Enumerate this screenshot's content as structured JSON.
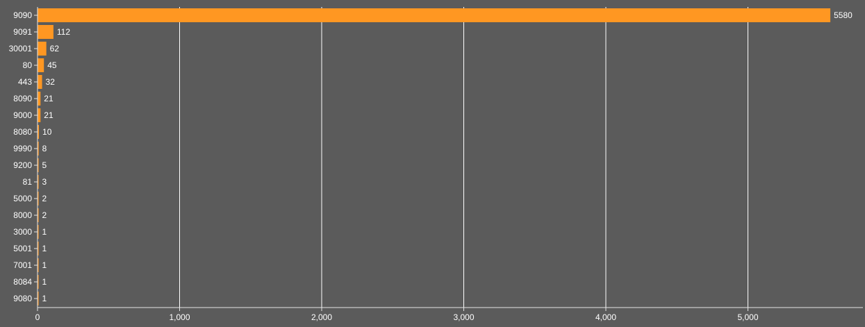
{
  "chart_data": {
    "type": "bar",
    "orientation": "horizontal",
    "title": "",
    "xlabel": "",
    "ylabel": "",
    "categories": [
      "9090",
      "9091",
      "30001",
      "80",
      "443",
      "8090",
      "9000",
      "8080",
      "9990",
      "9200",
      "81",
      "5000",
      "8000",
      "3000",
      "5001",
      "7001",
      "8084",
      "9080"
    ],
    "values": [
      5580,
      112,
      62,
      45,
      32,
      21,
      21,
      10,
      8,
      5,
      3,
      2,
      2,
      1,
      1,
      1,
      1,
      1
    ],
    "value_labels": [
      "5580",
      "112",
      "62",
      "45",
      "32",
      "21",
      "21",
      "10",
      "8",
      "5",
      "3",
      "2",
      "2",
      "1",
      "1",
      "1",
      "1",
      "1"
    ],
    "xlim": [
      0,
      5800
    ],
    "x_ticks": [
      0,
      1000,
      2000,
      3000,
      4000,
      5000
    ],
    "x_tick_labels": [
      "0",
      "1,000",
      "2,000",
      "3,000",
      "4,000",
      "5,000"
    ],
    "grid": "vertical",
    "legend": "none",
    "colors": {
      "bar": "#ff9722",
      "background": "#5b5b5b",
      "grid": "#ffffff",
      "axis": "#e6e6e6",
      "text": "#ffffff"
    }
  }
}
